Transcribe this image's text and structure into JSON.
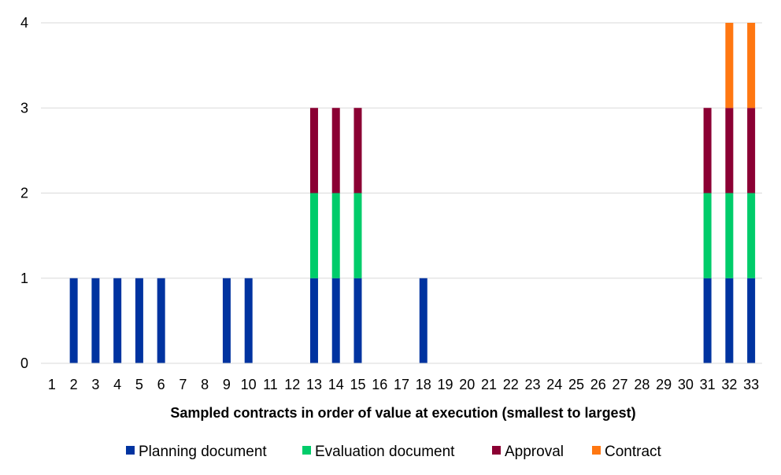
{
  "chart_data": {
    "type": "bar",
    "stacked": true,
    "title": "",
    "xlabel": "Sampled contracts in order of value at execution (smallest to largest)",
    "ylabel": "",
    "ylim": [
      0,
      4
    ],
    "yticks": [
      0,
      1,
      2,
      3,
      4
    ],
    "grid": true,
    "legend_position": "bottom",
    "categories": [
      "1",
      "2",
      "3",
      "4",
      "5",
      "6",
      "7",
      "8",
      "9",
      "10",
      "11",
      "12",
      "13",
      "14",
      "15",
      "16",
      "17",
      "18",
      "19",
      "20",
      "21",
      "22",
      "23",
      "24",
      "25",
      "26",
      "27",
      "28",
      "29",
      "30",
      "31",
      "32",
      "33"
    ],
    "series": [
      {
        "name": "Planning document",
        "color": "#0033a0",
        "values": [
          0,
          1,
          1,
          1,
          1,
          1,
          0,
          0,
          1,
          1,
          0,
          0,
          1,
          1,
          1,
          0,
          0,
          1,
          0,
          0,
          0,
          0,
          0,
          0,
          0,
          0,
          0,
          0,
          0,
          0,
          1,
          1,
          1
        ]
      },
      {
        "name": "Evaluation document",
        "color": "#00cc6a",
        "values": [
          0,
          0,
          0,
          0,
          0,
          0,
          0,
          0,
          0,
          0,
          0,
          0,
          1,
          1,
          1,
          0,
          0,
          0,
          0,
          0,
          0,
          0,
          0,
          0,
          0,
          0,
          0,
          0,
          0,
          0,
          1,
          1,
          1
        ]
      },
      {
        "name": "Approval",
        "color": "#8b0033",
        "values": [
          0,
          0,
          0,
          0,
          0,
          0,
          0,
          0,
          0,
          0,
          0,
          0,
          1,
          1,
          1,
          0,
          0,
          0,
          0,
          0,
          0,
          0,
          0,
          0,
          0,
          0,
          0,
          0,
          0,
          0,
          1,
          1,
          1
        ]
      },
      {
        "name": "Contract",
        "color": "#ff7711",
        "values": [
          0,
          0,
          0,
          0,
          0,
          0,
          0,
          0,
          0,
          0,
          0,
          0,
          0,
          0,
          0,
          0,
          0,
          0,
          0,
          0,
          0,
          0,
          0,
          0,
          0,
          0,
          0,
          0,
          0,
          0,
          0,
          1,
          1
        ]
      }
    ]
  }
}
